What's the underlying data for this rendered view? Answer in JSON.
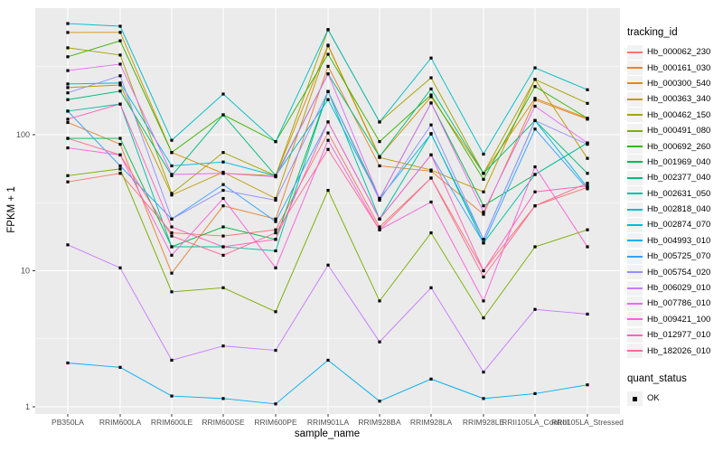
{
  "chart_data": {
    "type": "line",
    "title": "",
    "xlabel": "sample_name",
    "ylabel": "FPKM + 1",
    "y_scale": "log10",
    "y_ticks": [
      1,
      10,
      100
    ],
    "ylim": [
      0.9,
      850
    ],
    "grid": "on",
    "panel_bg": "#EBEBEB",
    "grid_color": "#FFFFFF",
    "marker_color": "#000000",
    "tick_label_color": "#4D4D4D",
    "categories": [
      "PB350LA",
      "RRIM600LA",
      "RRIM600LE",
      "RRIM600SE",
      "RRIM600PE",
      "RRIM901LA",
      "RRIM928BA",
      "RRIM928LA",
      "RRIM928LE",
      "RRII105LA_Control",
      "RRII105LA_Stressed"
    ],
    "series": [
      {
        "name": "Hb_000062_230",
        "color": "#F8766D",
        "values": [
          45,
          52,
          19,
          18,
          20,
          103,
          21,
          48,
          10,
          30,
          41
        ]
      },
      {
        "name": "Hb_000161_030",
        "color": "#EA8331",
        "values": [
          123,
          85,
          9.6,
          30,
          24,
          318,
          59,
          54,
          26,
          180,
          130
        ]
      },
      {
        "name": "Hb_000300_540",
        "color": "#D89000",
        "values": [
          564,
          565,
          74,
          52,
          50,
          455,
          69,
          190,
          52,
          185,
          132
        ]
      },
      {
        "name": "Hb_000363_340",
        "color": "#C09B00",
        "values": [
          222,
          232,
          36,
          53,
          34,
          450,
          68,
          55,
          38,
          255,
          67
        ]
      },
      {
        "name": "Hb_000462_150",
        "color": "#A3A500",
        "values": [
          435,
          385,
          37,
          74,
          50,
          590,
          124,
          262,
          52,
          255,
          170
        ]
      },
      {
        "name": "Hb_000491_080",
        "color": "#7CAE00",
        "values": [
          50,
          56,
          7,
          7.5,
          5,
          39,
          6,
          19,
          4.5,
          15,
          20
        ]
      },
      {
        "name": "Hb_000692_260",
        "color": "#39B600",
        "values": [
          374,
          490,
          74,
          140,
          89,
          390,
          89,
          196,
          47,
          226,
          132
        ]
      },
      {
        "name": "Hb_001969_040",
        "color": "#00BB4E",
        "values": [
          94,
          94,
          15,
          21,
          17,
          208,
          34,
          171,
          30,
          51,
          87
        ]
      },
      {
        "name": "Hb_002377_040",
        "color": "#00BF7D",
        "values": [
          181,
          209,
          50,
          140,
          50,
          280,
          69,
          217,
          52,
          127,
          52
        ]
      },
      {
        "name": "Hb_002631_050",
        "color": "#00C1A3",
        "values": [
          149,
          168,
          15,
          15,
          14,
          208,
          24,
          102,
          16,
          51,
          87
        ]
      },
      {
        "name": "Hb_002818_040",
        "color": "#00BFC4",
        "values": [
          656,
          627,
          91,
          199,
          89,
          593,
          124,
          366,
          72,
          310,
          214
        ]
      },
      {
        "name": "Hb_002874_070",
        "color": "#00BAE0",
        "values": [
          236,
          240,
          59,
          63,
          50,
          181,
          34,
          101,
          17,
          127,
          41
        ]
      },
      {
        "name": "Hb_004993_010",
        "color": "#00B0F6",
        "values": [
          2.1,
          1.95,
          1.2,
          1.15,
          1.05,
          2.2,
          1.1,
          1.6,
          1.15,
          1.25,
          1.45
        ]
      },
      {
        "name": "Hb_005725_070",
        "color": "#35A2FF",
        "values": [
          149,
          59,
          24,
          43,
          23,
          124,
          24,
          71,
          16,
          110,
          40
        ]
      },
      {
        "name": "Hb_005754_020",
        "color": "#9590FF",
        "values": [
          203,
          271,
          24,
          39,
          33,
          208,
          33,
          118,
          17,
          127,
          85
        ]
      },
      {
        "name": "Hb_006029_010",
        "color": "#C77CFF",
        "values": [
          15.5,
          10.5,
          2.2,
          2.8,
          2.6,
          11,
          3,
          7.5,
          1.8,
          5.2,
          4.8
        ]
      },
      {
        "name": "Hb_007786_010",
        "color": "#E76BF3",
        "values": [
          296,
          330,
          51,
          52,
          49,
          280,
          34,
          171,
          27,
          162,
          87
        ]
      },
      {
        "name": "Hb_009421_100",
        "color": "#FA62DB",
        "values": [
          80,
          71,
          13,
          34,
          10.5,
          91,
          20,
          32,
          6,
          58,
          15
        ]
      },
      {
        "name": "Hb_012977_010",
        "color": "#FF62BC",
        "values": [
          130,
          168,
          21,
          15,
          17,
          124,
          24,
          71,
          10,
          38,
          42
        ]
      },
      {
        "name": "Hb_182026_010",
        "color": "#FF6A98",
        "values": [
          94,
          71,
          18,
          13,
          19,
          78,
          20,
          48,
          9,
          30,
          44
        ]
      }
    ],
    "legend": {
      "color_title": "tracking_id",
      "shape_title": "quant_status",
      "shape_items": [
        {
          "label": "OK",
          "marker": "black-square"
        }
      ],
      "position": "right"
    }
  }
}
